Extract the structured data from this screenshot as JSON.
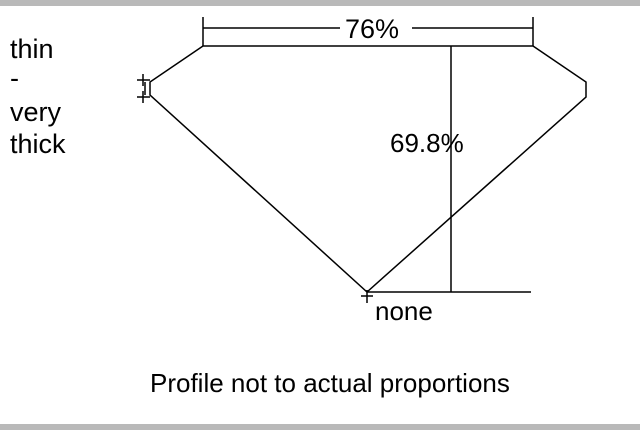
{
  "labels": {
    "girdle_thin": "thin",
    "girdle_dash": "-",
    "girdle_very": "very",
    "girdle_thick": "thick",
    "table_pct": "76%",
    "depth_pct": "69.8%",
    "culet": "none",
    "caption": "Profile not to actual proportions"
  },
  "colors": {
    "line": "#000000",
    "border_band": "#b9b9b9",
    "background": "#ffffff"
  }
}
